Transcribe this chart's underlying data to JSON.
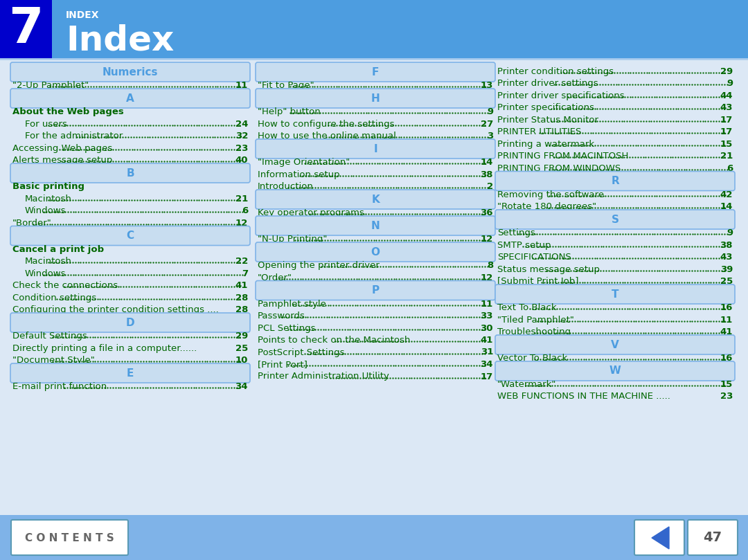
{
  "bg_header_color": "#4d9de0",
  "bg_dark_blue": "#0000cc",
  "bg_body_color": "#dce8f5",
  "bg_footer_color": "#7fb3e8",
  "header_text_color": "#ffffff",
  "section_header_bg": "#c8ddf0",
  "section_header_text": "#4d9de0",
  "section_header_border": "#7fb3e8",
  "title_num": "7",
  "title_label": "INDEX",
  "title_text": "Index",
  "col1_sections": [
    {
      "type": "header",
      "text": "Numerics"
    },
    {
      "type": "entry",
      "indent": 0,
      "text": "\"2-Up Pamphlet\"",
      "dots": true,
      "page": "11"
    },
    {
      "type": "header",
      "text": "A"
    },
    {
      "type": "entry",
      "indent": 0,
      "text": "About the Web pages",
      "dots": false,
      "page": ""
    },
    {
      "type": "entry",
      "indent": 1,
      "text": "For users",
      "dots": true,
      "page": "24"
    },
    {
      "type": "entry",
      "indent": 1,
      "text": "For the administrator",
      "dots": true,
      "page": "32"
    },
    {
      "type": "entry",
      "indent": 0,
      "text": "Accessing Web pages",
      "dots": true,
      "page": "23"
    },
    {
      "type": "entry",
      "indent": 0,
      "text": "Alerts message setup",
      "dots": true,
      "page": "40"
    },
    {
      "type": "header",
      "text": "B"
    },
    {
      "type": "entry",
      "indent": 0,
      "text": "Basic printing",
      "dots": false,
      "page": ""
    },
    {
      "type": "entry",
      "indent": 1,
      "text": "Macintosh",
      "dots": true,
      "page": "21"
    },
    {
      "type": "entry",
      "indent": 1,
      "text": "Windows",
      "dots": true,
      "page": "6"
    },
    {
      "type": "entry",
      "indent": 0,
      "text": "\"Border\"",
      "dots": true,
      "page": "12"
    },
    {
      "type": "header",
      "text": "C"
    },
    {
      "type": "entry",
      "indent": 0,
      "text": "Cancel a print job",
      "dots": false,
      "page": ""
    },
    {
      "type": "entry",
      "indent": 1,
      "text": "Macintosh",
      "dots": true,
      "page": "22"
    },
    {
      "type": "entry",
      "indent": 1,
      "text": "Windows",
      "dots": true,
      "page": "7"
    },
    {
      "type": "entry",
      "indent": 0,
      "text": "Check the connections",
      "dots": true,
      "page": "41"
    },
    {
      "type": "entry",
      "indent": 0,
      "text": "Condition settings",
      "dots": true,
      "page": "28"
    },
    {
      "type": "entry",
      "indent": 0,
      "text": "Configuring the printer condition settings ....",
      "dots": false,
      "page": "28"
    },
    {
      "type": "header",
      "text": "D"
    },
    {
      "type": "entry",
      "indent": 0,
      "text": "Default Settings",
      "dots": true,
      "page": "29"
    },
    {
      "type": "entry",
      "indent": 0,
      "text": "Directly printing a file in a computer......",
      "dots": false,
      "page": "25"
    },
    {
      "type": "entry",
      "indent": 0,
      "text": "\"Document Style\"",
      "dots": true,
      "page": "10"
    },
    {
      "type": "header",
      "text": "E"
    },
    {
      "type": "entry",
      "indent": 0,
      "text": "E-mail print function",
      "dots": true,
      "page": "34"
    }
  ],
  "col2_sections": [
    {
      "type": "header",
      "text": "F"
    },
    {
      "type": "entry",
      "indent": 0,
      "text": "\"Fit to Page\"",
      "dots": true,
      "page": "13"
    },
    {
      "type": "header",
      "text": "H"
    },
    {
      "type": "entry",
      "indent": 0,
      "text": "\"Help\" button",
      "dots": true,
      "page": "9"
    },
    {
      "type": "entry",
      "indent": 0,
      "text": "How to configure the settings",
      "dots": true,
      "page": "27"
    },
    {
      "type": "entry",
      "indent": 0,
      "text": "How to use the online manual",
      "dots": true,
      "page": "3"
    },
    {
      "type": "header",
      "text": "I"
    },
    {
      "type": "entry",
      "indent": 0,
      "text": "\"Image Orientation\"",
      "dots": true,
      "page": "14"
    },
    {
      "type": "entry",
      "indent": 0,
      "text": "Information setup",
      "dots": true,
      "page": "38"
    },
    {
      "type": "entry",
      "indent": 0,
      "text": "Introduction",
      "dots": true,
      "page": "2"
    },
    {
      "type": "header",
      "text": "K"
    },
    {
      "type": "entry",
      "indent": 0,
      "text": "Key operator programs",
      "dots": true,
      "page": "36"
    },
    {
      "type": "header",
      "text": "N"
    },
    {
      "type": "entry",
      "indent": 0,
      "text": "\"N-Up Printing\"",
      "dots": true,
      "page": "12"
    },
    {
      "type": "header",
      "text": "O"
    },
    {
      "type": "entry",
      "indent": 0,
      "text": "Opening the printer driver",
      "dots": true,
      "page": "8"
    },
    {
      "type": "entry",
      "indent": 0,
      "text": "\"Order\"",
      "dots": true,
      "page": "12"
    },
    {
      "type": "header",
      "text": "P"
    },
    {
      "type": "entry",
      "indent": 0,
      "text": "Pamphlet style",
      "dots": true,
      "page": "11"
    },
    {
      "type": "entry",
      "indent": 0,
      "text": "Passwords",
      "dots": true,
      "page": "33"
    },
    {
      "type": "entry",
      "indent": 0,
      "text": "PCL Settings",
      "dots": true,
      "page": "30"
    },
    {
      "type": "entry",
      "indent": 0,
      "text": "Points to check on the Macintosh",
      "dots": true,
      "page": "41"
    },
    {
      "type": "entry",
      "indent": 0,
      "text": "PostScript Settings",
      "dots": true,
      "page": "31"
    },
    {
      "type": "entry",
      "indent": 0,
      "text": "[Print Port]",
      "dots": true,
      "page": "34"
    },
    {
      "type": "entry",
      "indent": 0,
      "text": "Printer Administration Utility",
      "dots": true,
      "page": "17"
    }
  ],
  "col3_sections": [
    {
      "type": "entry",
      "indent": 0,
      "text": "Printer condition settings",
      "dots": true,
      "page": "29"
    },
    {
      "type": "entry",
      "indent": 0,
      "text": "Printer driver settings",
      "dots": true,
      "page": "9"
    },
    {
      "type": "entry",
      "indent": 0,
      "text": "Printer driver specifications",
      "dots": true,
      "page": "44"
    },
    {
      "type": "entry",
      "indent": 0,
      "text": "Printer specifications",
      "dots": true,
      "page": "43"
    },
    {
      "type": "entry",
      "indent": 0,
      "text": "Printer Status Monitor",
      "dots": true,
      "page": "17"
    },
    {
      "type": "entry",
      "indent": 0,
      "text": "PRINTER UTILITIES",
      "dots": true,
      "page": "17"
    },
    {
      "type": "entry",
      "indent": 0,
      "text": "Printing a watermark",
      "dots": true,
      "page": "15"
    },
    {
      "type": "entry",
      "indent": 0,
      "text": "PRINTING FROM MACINTOSH",
      "dots": true,
      "page": "21"
    },
    {
      "type": "entry",
      "indent": 0,
      "text": "PRINTING FROM WINDOWS",
      "dots": true,
      "page": "6"
    },
    {
      "type": "header",
      "text": "R"
    },
    {
      "type": "entry",
      "indent": 0,
      "text": "Removing the software",
      "dots": true,
      "page": "42"
    },
    {
      "type": "entry",
      "indent": 0,
      "text": "\"Rotate 180 degrees\"",
      "dots": true,
      "page": "14"
    },
    {
      "type": "header",
      "text": "S"
    },
    {
      "type": "entry",
      "indent": 0,
      "text": "Settings",
      "dots": true,
      "page": "9"
    },
    {
      "type": "entry",
      "indent": 0,
      "text": "SMTP setup",
      "dots": true,
      "page": "38"
    },
    {
      "type": "entry",
      "indent": 0,
      "text": "SPECIFICATIONS",
      "dots": true,
      "page": "43"
    },
    {
      "type": "entry",
      "indent": 0,
      "text": "Status message setup",
      "dots": true,
      "page": "39"
    },
    {
      "type": "entry",
      "indent": 0,
      "text": "[Submit Print Job]",
      "dots": true,
      "page": "25"
    },
    {
      "type": "header",
      "text": "T"
    },
    {
      "type": "entry",
      "indent": 0,
      "text": "Text To Black",
      "dots": true,
      "page": "16"
    },
    {
      "type": "entry",
      "indent": 0,
      "text": "\"Tiled Pamphlet\"",
      "dots": true,
      "page": "11"
    },
    {
      "type": "entry",
      "indent": 0,
      "text": "Troubleshooting",
      "dots": true,
      "page": "41"
    },
    {
      "type": "header",
      "text": "V"
    },
    {
      "type": "entry",
      "indent": 0,
      "text": "Vector To Black",
      "dots": true,
      "page": "16"
    },
    {
      "type": "header",
      "text": "W"
    },
    {
      "type": "entry",
      "indent": 0,
      "text": "\"Watermark\"",
      "dots": true,
      "page": "15"
    },
    {
      "type": "entry",
      "indent": 0,
      "text": "WEB FUNCTIONS IN THE MACHINE .....",
      "dots": false,
      "page": "23"
    }
  ],
  "footer_text": "C O N T E N T S",
  "page_num": "47",
  "text_color_green": "#006600",
  "text_color_dark": "#333333"
}
